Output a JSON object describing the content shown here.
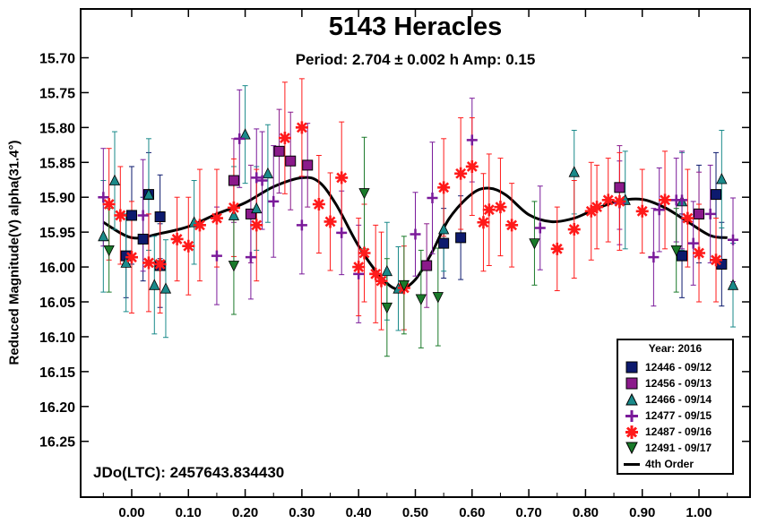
{
  "title": "5143 Heracles",
  "subtitle": "Period: 2.704 ± 0.002 h   Amp: 0.15",
  "ylabel": "Reduced Magnitude(V) alpha(31.4°)",
  "jdo": "JDo(LTC): 2457643.834430",
  "legend_title": "Year: 2016",
  "colors": {
    "12446": "#0d1a6e",
    "12456": "#8b1a8b",
    "12466": "#1a8a8a",
    "12477": "#7a1a9a",
    "12487": "#ff1a1a",
    "12491": "#1a7a2a",
    "fit": "#000000"
  },
  "chart_data": {
    "type": "scatter",
    "title": "5143 Heracles",
    "subtitle": "Period: 2.704 ± 0.002 h   Amp: 0.15",
    "xlabel": "",
    "ylabel": "Reduced Magnitude(V) alpha(31.4°)",
    "xlim": [
      -0.09,
      1.09
    ],
    "ylim": [
      16.33,
      15.63
    ],
    "y_inverted": true,
    "x_ticks": [
      0.0,
      0.1,
      0.2,
      0.3,
      0.4,
      0.5,
      0.6,
      0.7,
      0.8,
      0.9,
      1.0
    ],
    "x_tick_labels": [
      "0.00",
      "0.10",
      "0.20",
      "0.30",
      "0.40",
      "0.50",
      "0.60",
      "0.70",
      "0.80",
      "0.90",
      "1.00"
    ],
    "y_ticks": [
      15.7,
      15.75,
      15.8,
      15.85,
      15.9,
      15.95,
      16.0,
      16.05,
      16.1,
      16.15,
      16.2,
      16.25
    ],
    "y_tick_labels": [
      "15.70",
      "15.75",
      "15.80",
      "15.85",
      "15.90",
      "15.95",
      "16.00",
      "16.05",
      "16.10",
      "16.15",
      "16.20",
      "16.25"
    ],
    "legend_position": "bottom-right",
    "series": [
      {
        "name": "12446 - 09/12",
        "marker": "square",
        "color": "#0d1a6e",
        "x": [
          -0.01,
          0.0,
          0.02,
          0.03,
          0.05,
          0.05,
          0.55,
          0.58,
          0.97,
          1.0,
          1.03,
          1.04
        ],
        "y": [
          15.984,
          15.926,
          15.96,
          15.896,
          15.928,
          15.998,
          15.966,
          15.958,
          15.984,
          15.924,
          15.896,
          15.996
        ],
        "err": [
          0.06,
          0.07,
          0.06,
          0.06,
          0.06,
          0.06,
          0.05,
          0.06,
          0.06,
          0.07,
          0.06,
          0.06
        ]
      },
      {
        "name": "12456 - 09/13",
        "marker": "square",
        "color": "#8b1a8b",
        "x": [
          0.18,
          0.21,
          0.26,
          0.28,
          0.31,
          0.52,
          0.86,
          1.0
        ],
        "y": [
          15.876,
          15.924,
          15.834,
          15.848,
          15.854,
          15.998,
          15.886,
          15.924
        ],
        "err": [
          0.06,
          0.07,
          0.06,
          0.07,
          0.06,
          0.06,
          0.06,
          0.06
        ]
      },
      {
        "name": "12466 - 09/14",
        "marker": "triangle-up",
        "color": "#1a8a8a",
        "x": [
          -0.05,
          -0.03,
          -0.01,
          0.03,
          0.04,
          0.06,
          0.11,
          0.18,
          0.2,
          0.22,
          0.24,
          0.45,
          0.47,
          0.55,
          0.78,
          0.87,
          0.97,
          1.04,
          1.06
        ],
        "y": [
          15.956,
          15.876,
          15.994,
          15.896,
          16.026,
          16.031,
          15.936,
          15.926,
          15.81,
          15.916,
          15.866,
          16.006,
          16.031,
          15.946,
          15.864,
          15.904,
          15.906,
          15.874,
          16.026
        ],
        "err": [
          0.08,
          0.07,
          0.07,
          0.08,
          0.07,
          0.07,
          0.06,
          0.07,
          0.07,
          0.06,
          0.07,
          0.07,
          0.06,
          0.06,
          0.06,
          0.07,
          0.07,
          0.07,
          0.06
        ]
      },
      {
        "name": "12477 - 09/15",
        "marker": "plus",
        "color": "#7a1a9a",
        "x": [
          -0.05,
          0.02,
          0.15,
          0.19,
          0.21,
          0.22,
          0.23,
          0.25,
          0.3,
          0.37,
          0.4,
          0.5,
          0.53,
          0.6,
          0.72,
          0.86,
          0.92,
          0.93,
          0.96,
          0.97,
          0.99,
          1.02,
          1.06
        ],
        "y": [
          15.9,
          15.926,
          15.984,
          15.816,
          15.986,
          15.872,
          15.876,
          15.906,
          15.94,
          15.951,
          16.01,
          15.953,
          15.901,
          15.818,
          15.944,
          15.908,
          15.986,
          15.918,
          15.904,
          15.904,
          15.966,
          15.924,
          15.961
        ],
        "err": [
          0.07,
          0.08,
          0.07,
          0.07,
          0.06,
          0.07,
          0.07,
          0.08,
          0.07,
          0.06,
          0.07,
          0.06,
          0.08,
          0.06,
          0.06,
          0.06,
          0.07,
          0.06,
          0.06,
          0.07,
          0.06,
          0.07,
          0.06
        ]
      },
      {
        "name": "12487 - 09/16",
        "marker": "asterisk",
        "color": "#ff1a1a",
        "x": [
          -0.04,
          -0.02,
          0.0,
          0.03,
          0.05,
          0.08,
          0.1,
          0.12,
          0.15,
          0.18,
          0.22,
          0.27,
          0.3,
          0.33,
          0.35,
          0.37,
          0.4,
          0.41,
          0.43,
          0.44,
          0.48,
          0.55,
          0.58,
          0.6,
          0.62,
          0.63,
          0.65,
          0.67,
          0.75,
          0.78,
          0.81,
          0.82,
          0.84,
          0.86,
          0.9,
          0.94,
          0.98,
          1.0,
          1.03
        ],
        "y": [
          15.91,
          15.926,
          15.986,
          15.994,
          15.996,
          15.96,
          15.97,
          15.94,
          15.93,
          15.915,
          15.94,
          15.815,
          15.8,
          15.91,
          15.935,
          15.872,
          16.0,
          15.98,
          16.01,
          16.02,
          16.03,
          15.886,
          15.866,
          15.856,
          15.936,
          15.918,
          15.914,
          15.94,
          15.974,
          15.946,
          15.92,
          15.914,
          15.904,
          15.906,
          15.92,
          15.904,
          15.93,
          15.98,
          15.99
        ],
        "err": [
          0.08,
          0.07,
          0.08,
          0.07,
          0.07,
          0.06,
          0.07,
          0.08,
          0.07,
          0.07,
          0.08,
          0.08,
          0.07,
          0.07,
          0.07,
          0.08,
          0.07,
          0.07,
          0.07,
          0.07,
          0.06,
          0.07,
          0.08,
          0.07,
          0.07,
          0.08,
          0.07,
          0.06,
          0.06,
          0.07,
          0.07,
          0.06,
          0.06,
          0.07,
          0.06,
          0.07,
          0.07,
          0.07,
          0.06
        ]
      },
      {
        "name": "12491 - 09/17",
        "marker": "triangle-down",
        "color": "#1a7a2a",
        "x": [
          -0.04,
          0.18,
          0.41,
          0.45,
          0.48,
          0.51,
          0.54,
          0.71,
          0.96
        ],
        "y": [
          15.976,
          15.998,
          15.894,
          16.058,
          16.026,
          16.046,
          16.043,
          15.966,
          15.976
        ],
        "err": [
          0.06,
          0.07,
          0.08,
          0.07,
          0.07,
          0.07,
          0.07,
          0.06,
          0.06
        ]
      }
    ],
    "fit": {
      "name": "4th Order",
      "x": [
        -0.05,
        0.0,
        0.05,
        0.1,
        0.15,
        0.2,
        0.25,
        0.3,
        0.33,
        0.36,
        0.4,
        0.44,
        0.47,
        0.5,
        0.53,
        0.56,
        0.6,
        0.63,
        0.66,
        0.7,
        0.74,
        0.78,
        0.82,
        0.86,
        0.9,
        0.94,
        0.98,
        1.02,
        1.05
      ],
      "y": [
        15.936,
        15.958,
        15.952,
        15.942,
        15.924,
        15.908,
        15.885,
        15.872,
        15.878,
        15.91,
        15.97,
        16.015,
        16.032,
        16.018,
        15.978,
        15.93,
        15.895,
        15.887,
        15.897,
        15.925,
        15.935,
        15.93,
        15.916,
        15.905,
        15.903,
        15.915,
        15.935,
        15.955,
        15.958
      ]
    }
  }
}
